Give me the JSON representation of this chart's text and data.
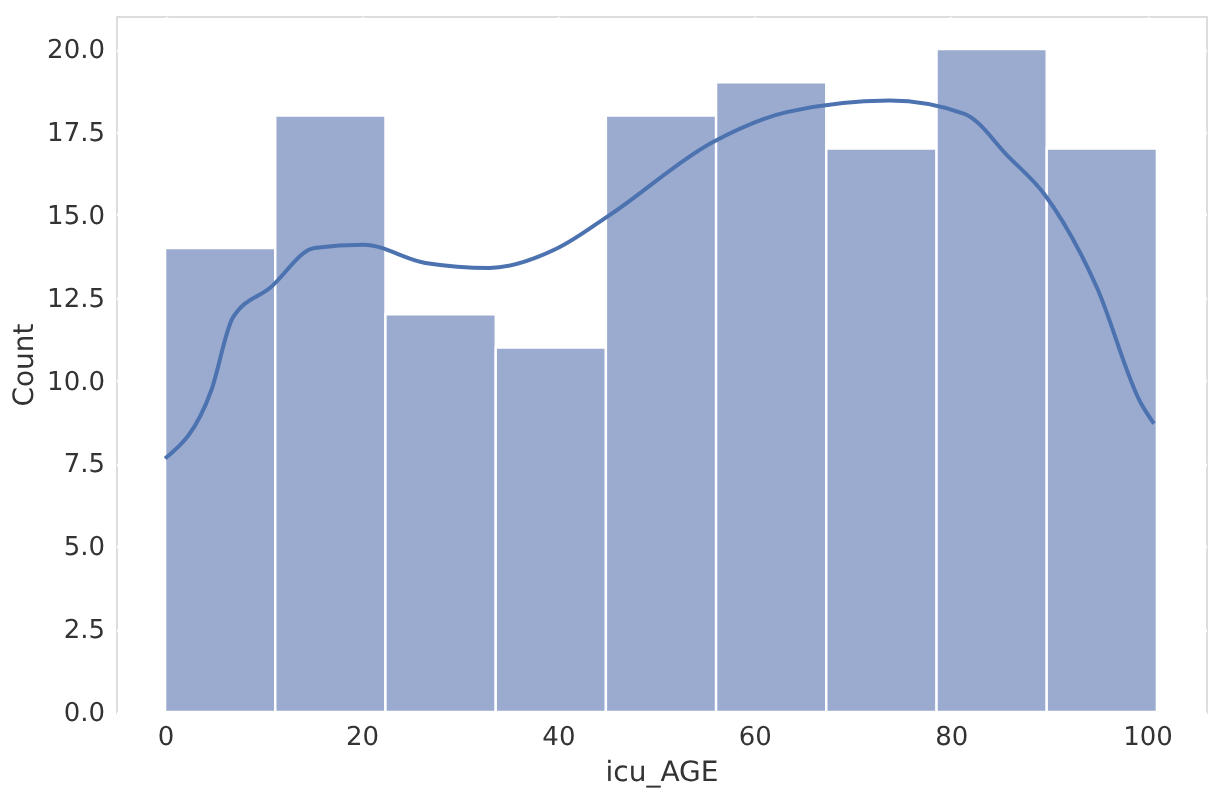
{
  "chart_data": {
    "type": "histogram",
    "xlabel": "icu_AGE",
    "ylabel": "Count",
    "bins": [
      0,
      11.22,
      22.44,
      33.67,
      44.89,
      56.11,
      67.33,
      78.56,
      89.78,
      101
    ],
    "values": [
      14,
      18,
      12,
      11,
      18,
      19,
      17,
      20,
      17
    ],
    "color": "#9aabcf",
    "series": [
      {
        "type": "line",
        "color": "#4c72b0",
        "x": [
          0,
          4.7,
          6.9,
          10.7,
          15.2,
          20.2,
          26.5,
          33,
          40,
          45.3,
          55.8,
          63.3,
          73.8,
          81.4,
          85.9,
          89.6,
          94.9,
          99.4,
          100.7
        ],
        "values": [
          7.65,
          9.7,
          11.9,
          12.8,
          14.0,
          14.1,
          13.55,
          13.4,
          14.0,
          15.0,
          17.2,
          18.1,
          18.45,
          18.05,
          16.75,
          15.6,
          12.8,
          9.3,
          8.7
        ]
      }
    ],
    "xlim": [
      -5,
      106
    ],
    "xticks": [
      0,
      20,
      40,
      60,
      80,
      100
    ],
    "ylim": [
      0,
      21
    ],
    "yticks": [
      {
        "value": 0,
        "label": "0.0"
      },
      {
        "value": 2.5,
        "label": "2.5"
      },
      {
        "value": 5,
        "label": "5.0"
      },
      {
        "value": 7.5,
        "label": "7.5"
      },
      {
        "value": 10,
        "label": "10.0"
      },
      {
        "value": 12.5,
        "label": "12.5"
      },
      {
        "value": 15,
        "label": "15.0"
      },
      {
        "value": 17.5,
        "label": "17.5"
      },
      {
        "value": 20,
        "label": "20.0"
      }
    ],
    "grid": true
  }
}
